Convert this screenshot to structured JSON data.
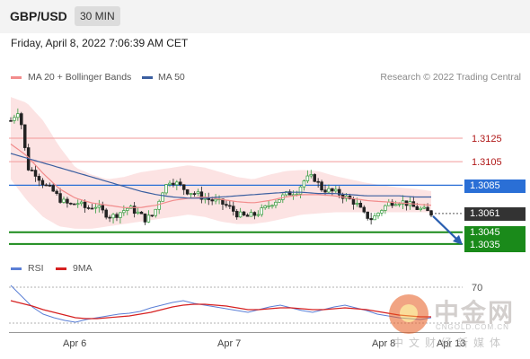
{
  "header": {
    "pair": "GBP/USD",
    "timeframe": "30 MIN"
  },
  "datetime": "Friday, April 8, 2022 7:06:39 AM CET",
  "legend": {
    "items": [
      {
        "label": "MA 20 + Bollinger Bands",
        "color": "#f28c8c"
      },
      {
        "label": "MA 50",
        "color": "#3b5fa0"
      }
    ],
    "copyright": "Research © 2022 Trading Central"
  },
  "rsi_legend": {
    "items": [
      {
        "label": "RSI",
        "color": "#5b7fd6"
      },
      {
        "label": "9MA",
        "color": "#d62020"
      }
    ]
  },
  "watermark": {
    "cn": "中金网",
    "en": "CNGOLD.COM.CN",
    "sub": "中文财经新媒体"
  },
  "chart_data": [
    {
      "type": "candlestick",
      "ylim": [
        1.3025,
        1.317
      ],
      "x_labels": [
        "Apr 6",
        "Apr 7",
        "Apr 8",
        "Apr 13"
      ],
      "resistance_levels": [
        "1.3125",
        "1.3105"
      ],
      "pivot": "1.3085",
      "last_price": "1.3061",
      "support_levels": [
        "1.3045",
        "1.3035"
      ],
      "levels_numeric": {
        "r2": 1.3125,
        "r1": 1.3105,
        "pivot": 1.3085,
        "last": 1.3061,
        "s1": 1.3045,
        "s2": 1.3035
      },
      "close_path": [
        1.314,
        1.315,
        1.31,
        1.3095,
        1.3085,
        1.308,
        1.3072,
        1.3068,
        1.307,
        1.3065,
        1.3068,
        1.3062,
        1.3058,
        1.3062,
        1.3066,
        1.3062,
        1.3056,
        1.306,
        1.308,
        1.309,
        1.3085,
        1.308,
        1.3078,
        1.3074,
        1.3072,
        1.307,
        1.3066,
        1.306,
        1.3058,
        1.306,
        1.3064,
        1.307,
        1.3074,
        1.3078,
        1.308,
        1.309,
        1.3092,
        1.3082,
        1.308,
        1.3078,
        1.3074,
        1.307,
        1.306,
        1.3056,
        1.3064,
        1.307,
        1.3072,
        1.307,
        1.3066,
        1.3064,
        1.3061
      ],
      "ma20_path": [
        1.312,
        1.311,
        1.3095,
        1.3082,
        1.3074,
        1.307,
        1.3068,
        1.3066,
        1.3066,
        1.3068,
        1.3072,
        1.3074,
        1.3075,
        1.3073,
        1.3071,
        1.307,
        1.3072,
        1.3075,
        1.3077,
        1.3077,
        1.3076,
        1.3074,
        1.3072,
        1.3071,
        1.307,
        1.3069,
        1.3068
      ],
      "ma50_path": [
        1.3112,
        1.3108,
        1.3104,
        1.31,
        1.3096,
        1.3092,
        1.3088,
        1.3084,
        1.308,
        1.3077,
        1.3075,
        1.3074,
        1.3074,
        1.3075,
        1.3076,
        1.3077,
        1.3078,
        1.3079,
        1.3079,
        1.3078,
        1.3078,
        1.3077,
        1.3076,
        1.3076,
        1.3076,
        1.3075,
        1.3075
      ],
      "bb_upper": [
        1.316,
        1.3155,
        1.314,
        1.3118,
        1.31,
        1.3094,
        1.309,
        1.3092,
        1.3096,
        1.3098,
        1.31,
        1.3102,
        1.31,
        1.3096,
        1.3092,
        1.309,
        1.3094,
        1.3097,
        1.3098,
        1.3097,
        1.3093,
        1.309,
        1.3087,
        1.3085,
        1.3083,
        1.3082,
        1.308
      ],
      "bb_lower": [
        1.309,
        1.3072,
        1.3058,
        1.305,
        1.3048,
        1.3048,
        1.305,
        1.3052,
        1.3054,
        1.3056,
        1.3058,
        1.306,
        1.3058,
        1.3054,
        1.3052,
        1.3052,
        1.3054,
        1.3057,
        1.306,
        1.3061,
        1.3062,
        1.3062,
        1.3062,
        1.3062,
        1.3062,
        1.3062,
        1.3062
      ],
      "forecast": {
        "from": 1.3061,
        "to": 1.3035
      }
    },
    {
      "type": "line",
      "series": [
        {
          "name": "RSI"
        },
        {
          "name": "9MA"
        }
      ],
      "ylim": [
        20,
        80
      ],
      "reference_level": "70",
      "rsi": [
        72,
        60,
        48,
        40,
        36,
        33,
        31,
        34,
        36,
        38,
        40,
        41,
        43,
        47,
        50,
        53,
        55,
        52,
        50,
        48,
        46,
        44,
        42,
        45,
        48,
        50,
        47,
        44,
        42,
        45,
        48,
        50,
        47,
        44,
        40,
        38,
        36,
        35,
        34,
        36
      ],
      "ma9": [
        55,
        52,
        49,
        45,
        42,
        39,
        36,
        35,
        35,
        36,
        37,
        38,
        40,
        42,
        45,
        48,
        50,
        51,
        51,
        50,
        49,
        47,
        45,
        45,
        46,
        47,
        47,
        46,
        45,
        45,
        46,
        47,
        46,
        45,
        43,
        41,
        39,
        38,
        37,
        37
      ]
    }
  ]
}
